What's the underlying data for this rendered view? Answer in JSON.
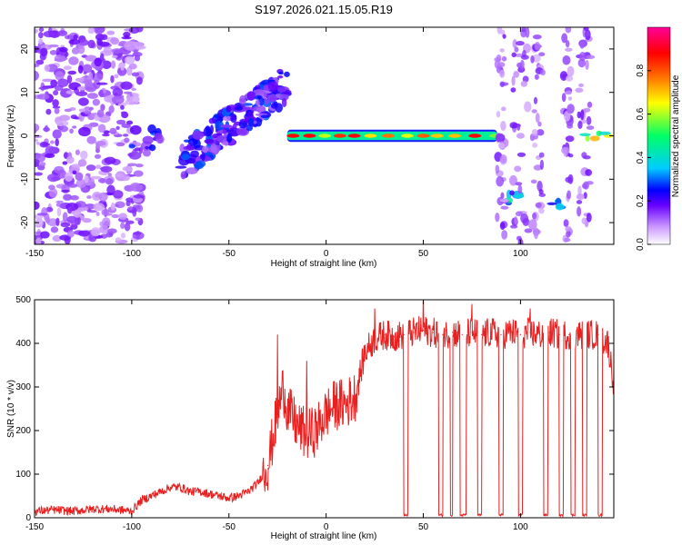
{
  "title": "S197.2026.021.15.05.R19",
  "chart_data": [
    {
      "type": "heatmap",
      "title": "S197.2026.021.15.05.R19",
      "xlabel": "Height of straight line (km)",
      "ylabel": "Frequency (Hz)",
      "xlim": [
        -150,
        148
      ],
      "ylim": [
        -25,
        25
      ],
      "x_ticks": [
        -150,
        -100,
        -50,
        0,
        50,
        100
      ],
      "y_ticks": [
        -20,
        -10,
        0,
        10,
        20
      ],
      "colorbar": {
        "label": "Normalized spectral amplitude",
        "range": [
          0,
          1
        ],
        "ticks": [
          0.0,
          0.2,
          0.4,
          0.6,
          0.8
        ],
        "tick_labels": [
          "0.0",
          "0.2",
          "0.4",
          "0.6",
          "0.8"
        ],
        "colors": [
          "#ffffff",
          "#cc99ff",
          "#6600ff",
          "#0000ff",
          "#00ccff",
          "#00ff66",
          "#ffff00",
          "#ff6600",
          "#ff0000",
          "#ff0099"
        ]
      },
      "features": [
        {
          "x_range": [
            -150,
            -95
          ],
          "freq_range": [
            -25,
            25
          ],
          "level": 0.15,
          "note": "diffuse noise"
        },
        {
          "x_range": [
            -100,
            -85
          ],
          "freq_range": [
            -4,
            2
          ],
          "level": 0.25
        },
        {
          "x_range": [
            -75,
            -20
          ],
          "freq_range": [
            -8,
            15
          ],
          "level": 0.25,
          "note": "rising streak"
        },
        {
          "x_range": [
            -20,
            88
          ],
          "freq_range": [
            -1,
            1
          ],
          "level": 0.75,
          "note": "zero-frequency band"
        },
        {
          "x_range": [
            90,
            100
          ],
          "freq_range": [
            -16,
            -13
          ],
          "level": 0.4
        },
        {
          "x_range": [
            115,
            122
          ],
          "freq_range": [
            -17,
            -15
          ],
          "level": 0.35
        },
        {
          "x_range": [
            133,
            147
          ],
          "freq_range": [
            -1,
            1
          ],
          "level": 0.7
        }
      ]
    },
    {
      "type": "line",
      "xlabel": "Height of straight line (km)",
      "ylabel": "SNR (10 * v/v)",
      "xlim": [
        -150,
        148
      ],
      "ylim": [
        0,
        500
      ],
      "x_ticks": [
        -150,
        -100,
        -50,
        0,
        50,
        100
      ],
      "y_ticks": [
        0,
        100,
        200,
        300,
        400,
        500
      ],
      "series": [
        {
          "name": "SNR",
          "color": "#e82020",
          "x": [
            -150,
            -140,
            -130,
            -120,
            -110,
            -100,
            -95,
            -90,
            -85,
            -80,
            -75,
            -70,
            -65,
            -60,
            -55,
            -50,
            -45,
            -40,
            -35,
            -30,
            -25,
            -22,
            -20,
            -15,
            -10,
            -5,
            0,
            5,
            10,
            15,
            20,
            25,
            30,
            35,
            40,
            45,
            50,
            55,
            60,
            65,
            70,
            75,
            80,
            85,
            90,
            95,
            100,
            105,
            110,
            115,
            120,
            125,
            130,
            135,
            140,
            145,
            148
          ],
          "values": [
            15,
            18,
            15,
            20,
            20,
            15,
            40,
            50,
            60,
            70,
            70,
            60,
            60,
            55,
            50,
            45,
            50,
            60,
            80,
            120,
            240,
            300,
            250,
            210,
            190,
            200,
            240,
            260,
            260,
            280,
            380,
            410,
            420,
            415,
            420,
            425,
            430,
            425,
            420,
            425,
            420,
            425,
            420,
            425,
            420,
            425,
            420,
            425,
            420,
            425,
            420,
            420,
            420,
            420,
            420,
            400,
            310
          ]
        }
      ],
      "dropouts": [
        {
          "x": 40,
          "width": 2
        },
        {
          "x": 58,
          "width": 2
        },
        {
          "x": 64,
          "width": 1
        },
        {
          "x": 69,
          "width": 3
        },
        {
          "x": 78,
          "width": 2
        },
        {
          "x": 89,
          "width": 2
        },
        {
          "x": 99,
          "width": 2
        },
        {
          "x": 112,
          "width": 2
        },
        {
          "x": 120,
          "width": 2
        },
        {
          "x": 126,
          "width": 2
        },
        {
          "x": 132,
          "width": 2
        },
        {
          "x": 140,
          "width": 2
        }
      ],
      "peaks": [
        {
          "x": -25,
          "value": 420
        },
        {
          "x": -10,
          "value": 360
        },
        {
          "x": 25,
          "value": 480
        },
        {
          "x": 50,
          "value": 510
        },
        {
          "x": 75,
          "value": 490
        },
        {
          "x": 105,
          "value": 480
        },
        {
          "x": 140,
          "value": 500
        }
      ]
    }
  ]
}
